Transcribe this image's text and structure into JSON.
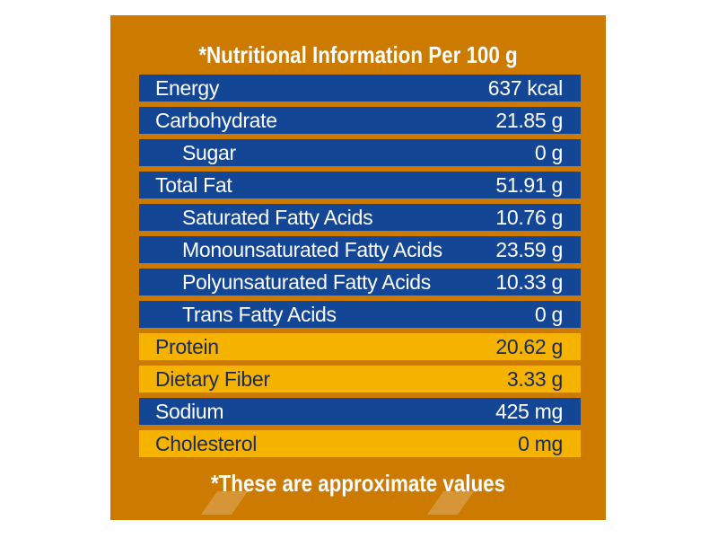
{
  "title": "*Nutritional Information Per 100 g",
  "footer": "*These are approximate values",
  "rows": [
    {
      "label": "Energy",
      "value": "637 kcal",
      "style": "blue",
      "sub": false
    },
    {
      "label": "Carbohydrate",
      "value": "21.85 g",
      "style": "blue",
      "sub": false
    },
    {
      "label": "Sugar",
      "value": "0 g",
      "style": "blue",
      "sub": true
    },
    {
      "label": "Total Fat",
      "value": "51.91 g",
      "style": "blue",
      "sub": false
    },
    {
      "label": "Saturated Fatty Acids",
      "value": "10.76 g",
      "style": "blue",
      "sub": true
    },
    {
      "label": "Monounsaturated Fatty Acids",
      "value": "23.59 g",
      "style": "blue",
      "sub": true
    },
    {
      "label": "Polyunsaturated Fatty Acids",
      "value": "10.33 g",
      "style": "blue",
      "sub": true
    },
    {
      "label": "Trans Fatty Acids",
      "value": "0 g",
      "style": "blue",
      "sub": true
    },
    {
      "label": "Protein",
      "value": "20.62 g",
      "style": "gold",
      "sub": false
    },
    {
      "label": "Dietary Fiber",
      "value": "3.33 g",
      "style": "gold",
      "sub": false
    },
    {
      "label": "Sodium",
      "value": "425 mg",
      "style": "blue",
      "sub": false
    },
    {
      "label": "Cholesterol",
      "value": "0 mg",
      "style": "gold",
      "sub": false
    }
  ],
  "colors": {
    "panel": "#cc7a00",
    "blue_row": "#144696",
    "gold_row": "#f5b300",
    "text_light": "#ffffff",
    "text_dark": "#1a2a5a"
  }
}
